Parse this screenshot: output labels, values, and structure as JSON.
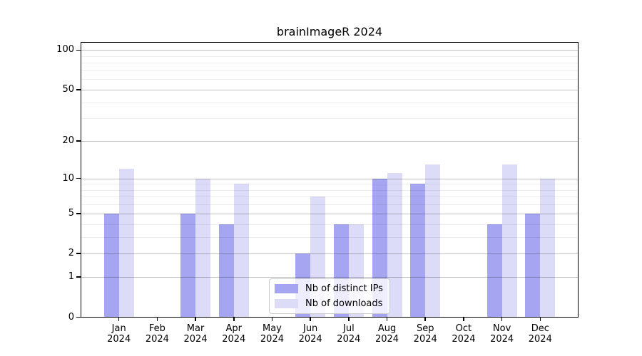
{
  "chart_data": {
    "type": "bar",
    "title": "brainImageR 2024",
    "categories": [
      "Jan",
      "Feb",
      "Mar",
      "Apr",
      "May",
      "Jun",
      "Jul",
      "Aug",
      "Sep",
      "Oct",
      "Nov",
      "Dec"
    ],
    "category_year": "2024",
    "series": [
      {
        "name": "Nb of distinct IPs",
        "color": "#a5a5f2",
        "values": [
          5,
          0,
          5,
          4,
          0,
          2,
          4,
          10,
          9,
          0,
          4,
          5
        ]
      },
      {
        "name": "Nb of downloads",
        "color": "#dcdcf8",
        "values": [
          12,
          0,
          10,
          9,
          0,
          7,
          4,
          11,
          13,
          0,
          13,
          10
        ]
      }
    ],
    "y_axis": {
      "scale": "log10(1+v)",
      "major_ticks": [
        0,
        1,
        2,
        5,
        10,
        20,
        50,
        100
      ],
      "minor_ticks": [
        3,
        4,
        6,
        7,
        8,
        9,
        30,
        40,
        60,
        70,
        80,
        90
      ],
      "max": 115
    },
    "grid": "horizontal, majors and minors, drawn over bars",
    "legend": {
      "position": "lower-center",
      "entries": [
        "Nb of distinct IPs",
        "Nb of downloads"
      ]
    },
    "colors": {
      "axis": "#000000",
      "major_grid": "#c4c4c4",
      "minor_grid": "#ebebeb",
      "background": "#ffffff"
    }
  }
}
